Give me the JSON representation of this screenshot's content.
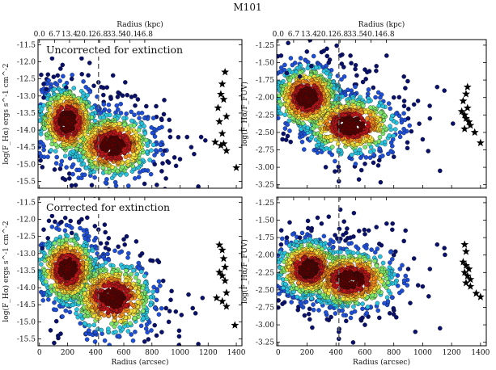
{
  "figure_title": "M101",
  "chart_data": [
    {
      "type": "scatter",
      "panel": "top-left",
      "annotation": "Uncorrected for extinction",
      "ylabel": "log(F_Hα) ergs s^-1 cm^-2",
      "xlabel": "",
      "top_xlabel": "Radius (kpc)",
      "xlim": [
        -10,
        1440
      ],
      "ylim": [
        -15.7,
        -11.35
      ],
      "yticks": [
        -11.5,
        -12.0,
        -12.5,
        -13.0,
        -13.5,
        -14.0,
        -14.5,
        -15.0,
        -15.5
      ],
      "ytick_labels": [
        "-11.5",
        "-12.0",
        "-12.5",
        "-13.0",
        "-13.5",
        "-14.0",
        "-14.5",
        "-15.0",
        "-15.5"
      ],
      "xticks": [
        0,
        200,
        400,
        600,
        800,
        1000,
        1200,
        1400
      ],
      "xtick_labels": [],
      "top_ticks": [
        0,
        107,
        214,
        321,
        428,
        535,
        642,
        749
      ],
      "top_tick_labels": [
        "0.0",
        "6.7",
        "13.4",
        "20.1",
        "26.8",
        "33.5",
        "40.1",
        "46.8"
      ],
      "vline": 420,
      "cluster": {
        "centers": [
          [
            200,
            -13.75,
            100,
            0.5
          ],
          [
            520,
            -14.45,
            140,
            0.45
          ]
        ],
        "count": 1400,
        "spread_x": 360,
        "spread_y": 0.9
      },
      "outliers": [
        [
          30,
          -12.65
        ],
        [
          90,
          -11.9
        ],
        [
          150,
          -12.2
        ],
        [
          230,
          -12.5
        ],
        [
          300,
          -11.9
        ],
        [
          350,
          -11.75
        ],
        [
          420,
          -12.6
        ],
        [
          480,
          -12.75
        ],
        [
          560,
          -12.9
        ],
        [
          610,
          -12.6
        ],
        [
          680,
          -11.65
        ],
        [
          700,
          -13.1
        ],
        [
          760,
          -13.3
        ],
        [
          830,
          -13.3
        ],
        [
          870,
          -13.7
        ],
        [
          890,
          -14.6
        ],
        [
          930,
          -14.2
        ],
        [
          960,
          -14.8
        ],
        [
          1000,
          -14.85
        ],
        [
          1050,
          -14.2
        ],
        [
          1080,
          -14.5
        ],
        [
          1100,
          -14.7
        ],
        [
          1150,
          -14.2
        ],
        [
          1180,
          -14.3
        ],
        [
          820,
          -15.0
        ],
        [
          870,
          -15.2
        ],
        [
          920,
          -14.95
        ],
        [
          1130,
          -15.65
        ],
        [
          30,
          -13.05
        ],
        [
          50,
          -12.8
        ],
        [
          130,
          -12.4
        ],
        [
          190,
          -12.75
        ]
      ],
      "stars": [
        [
          1270,
          -13.35
        ],
        [
          1290,
          -12.95
        ],
        [
          1300,
          -12.65
        ],
        [
          1320,
          -12.3
        ],
        [
          1310,
          -13.1
        ],
        [
          1330,
          -13.6
        ],
        [
          1280,
          -13.75
        ],
        [
          1300,
          -14.1
        ],
        [
          1250,
          -14.35
        ],
        [
          1290,
          -14.45
        ],
        [
          1310,
          -14.4
        ],
        [
          1330,
          -14.6
        ],
        [
          1400,
          -15.1
        ]
      ]
    },
    {
      "type": "scatter",
      "panel": "top-right",
      "annotation": "",
      "ylabel": "log(F_Hα/F_FUV)",
      "xlabel": "",
      "top_xlabel": "Radius (kpc)",
      "xlim": [
        -10,
        1440
      ],
      "ylim": [
        -3.3,
        -1.17
      ],
      "yticks": [
        -1.25,
        -1.5,
        -1.75,
        -2.0,
        -2.25,
        -2.5,
        -2.75,
        -3.0,
        -3.25
      ],
      "ytick_labels": [
        "-1.25",
        "-1.50",
        "-1.75",
        "-2.00",
        "-2.25",
        "-2.50",
        "-2.75",
        "-3.00",
        "-3.25"
      ],
      "xticks": [
        0,
        200,
        400,
        600,
        800,
        1000,
        1200,
        1400
      ],
      "xtick_labels": [],
      "top_ticks": [
        0,
        107,
        214,
        321,
        428,
        535,
        642,
        749
      ],
      "top_tick_labels": [
        "0.0",
        "6.7",
        "13.4",
        "20.1",
        "26.8",
        "33.5",
        "40.1",
        "46.8"
      ],
      "vline": 420,
      "cluster": {
        "centers": [
          [
            200,
            -2.0,
            110,
            0.22
          ],
          [
            500,
            -2.4,
            150,
            0.2
          ]
        ],
        "count": 1400,
        "spread_x": 360,
        "spread_y": 0.45
      },
      "outliers": [
        [
          20,
          -1.4
        ],
        [
          60,
          -1.65
        ],
        [
          150,
          -1.7
        ],
        [
          230,
          -1.55
        ],
        [
          300,
          -1.35
        ],
        [
          350,
          -1.5
        ],
        [
          430,
          -1.4
        ],
        [
          500,
          -1.4
        ],
        [
          600,
          -1.6
        ],
        [
          680,
          -1.55
        ],
        [
          750,
          -1.4
        ],
        [
          800,
          -2.0
        ],
        [
          870,
          -1.7
        ],
        [
          900,
          -2.3
        ],
        [
          940,
          -2.1
        ],
        [
          1000,
          -2.6
        ],
        [
          1050,
          -2.3
        ],
        [
          1100,
          -1.85
        ],
        [
          1150,
          -1.9
        ],
        [
          800,
          -2.85
        ],
        [
          700,
          -2.9
        ],
        [
          600,
          -2.95
        ],
        [
          420,
          -3.05
        ],
        [
          420,
          -3.2
        ],
        [
          1120,
          -3.05
        ],
        [
          30,
          -2.6
        ]
      ],
      "stars": [
        [
          1280,
          -2.05
        ],
        [
          1300,
          -1.95
        ],
        [
          1310,
          -1.85
        ],
        [
          1270,
          -2.2
        ],
        [
          1290,
          -2.25
        ],
        [
          1300,
          -2.3
        ],
        [
          1310,
          -2.15
        ],
        [
          1320,
          -2.35
        ],
        [
          1330,
          -2.4
        ],
        [
          1290,
          -2.45
        ],
        [
          1360,
          -2.5
        ],
        [
          1400,
          -2.65
        ]
      ]
    },
    {
      "type": "scatter",
      "panel": "bottom-left",
      "annotation": "Corrected for extinction",
      "ylabel": "log(F_Hα) ergs s^-1 cm^-2",
      "xlabel": "Radius (arcsec)",
      "top_xlabel": "",
      "xlim": [
        -10,
        1440
      ],
      "ylim": [
        -15.7,
        -11.35
      ],
      "yticks": [
        -11.5,
        -12.0,
        -12.5,
        -13.0,
        -13.5,
        -14.0,
        -14.5,
        -15.0,
        -15.5
      ],
      "ytick_labels": [
        "-11.5",
        "-12.0",
        "-12.5",
        "-13.0",
        "-13.5",
        "-14.0",
        "-14.5",
        "-15.0",
        "-15.5"
      ],
      "xticks": [
        0,
        200,
        400,
        600,
        800,
        1000,
        1200,
        1400
      ],
      "xtick_labels": [
        "0",
        "200",
        "400",
        "600",
        "800",
        "1000",
        "1200",
        "1400"
      ],
      "top_ticks": [
        0,
        107,
        214,
        321,
        428,
        535,
        642,
        749
      ],
      "top_tick_labels": [],
      "vline": 420,
      "cluster": {
        "centers": [
          [
            200,
            -13.45,
            100,
            0.5
          ],
          [
            520,
            -14.3,
            140,
            0.5
          ]
        ],
        "count": 1400,
        "spread_x": 360,
        "spread_y": 0.95
      },
      "outliers": [
        [
          30,
          -12.3
        ],
        [
          90,
          -11.9
        ],
        [
          150,
          -12.1
        ],
        [
          230,
          -12.4
        ],
        [
          300,
          -12.0
        ],
        [
          340,
          -11.95
        ],
        [
          420,
          -12.3
        ],
        [
          480,
          -12.7
        ],
        [
          560,
          -12.8
        ],
        [
          620,
          -12.5
        ],
        [
          690,
          -11.75
        ],
        [
          730,
          -13.0
        ],
        [
          790,
          -13.2
        ],
        [
          840,
          -13.2
        ],
        [
          880,
          -13.8
        ],
        [
          900,
          -14.6
        ],
        [
          940,
          -14.1
        ],
        [
          970,
          -14.7
        ],
        [
          1010,
          -14.8
        ],
        [
          1060,
          -14.2
        ],
        [
          1090,
          -14.6
        ],
        [
          1110,
          -14.75
        ],
        [
          1160,
          -14.3
        ],
        [
          820,
          -15.1
        ],
        [
          870,
          -15.3
        ],
        [
          920,
          -15.0
        ],
        [
          1130,
          -15.65
        ],
        [
          20,
          -12.85
        ],
        [
          60,
          -12.55
        ]
      ],
      "stars": [
        [
          1280,
          -12.75
        ],
        [
          1300,
          -12.9
        ],
        [
          1310,
          -13.15
        ],
        [
          1320,
          -13.4
        ],
        [
          1280,
          -13.55
        ],
        [
          1300,
          -13.65
        ],
        [
          1320,
          -13.8
        ],
        [
          1330,
          -14.15
        ],
        [
          1260,
          -14.3
        ],
        [
          1300,
          -14.4
        ],
        [
          1330,
          -14.55
        ],
        [
          1390,
          -15.1
        ]
      ]
    },
    {
      "type": "scatter",
      "panel": "bottom-right",
      "annotation": "",
      "ylabel": "log(F_Hα/F_FUV)",
      "xlabel": "Radius (arcsec)",
      "top_xlabel": "",
      "xlim": [
        -10,
        1440
      ],
      "ylim": [
        -3.3,
        -1.17
      ],
      "yticks": [
        -1.25,
        -1.5,
        -1.75,
        -2.0,
        -2.25,
        -2.5,
        -2.75,
        -3.0,
        -3.25
      ],
      "ytick_labels": [
        "-1.25",
        "-1.50",
        "-1.75",
        "-2.00",
        "-2.25",
        "-2.50",
        "-2.75",
        "-3.00",
        "-3.25"
      ],
      "xticks": [
        0,
        200,
        400,
        600,
        800,
        1000,
        1200,
        1400
      ],
      "xtick_labels": [
        "0",
        "200",
        "400",
        "600",
        "800",
        "1000",
        "1200",
        "1400"
      ],
      "top_ticks": [
        0,
        107,
        214,
        321,
        428,
        535,
        642,
        749
      ],
      "top_tick_labels": [],
      "vline": 420,
      "cluster": {
        "centers": [
          [
            210,
            -2.2,
            110,
            0.2
          ],
          [
            500,
            -2.35,
            150,
            0.2
          ]
        ],
        "count": 1400,
        "spread_x": 360,
        "spread_y": 0.42
      },
      "outliers": [
        [
          20,
          -1.85
        ],
        [
          60,
          -1.75
        ],
        [
          150,
          -1.75
        ],
        [
          230,
          -1.65
        ],
        [
          300,
          -1.55
        ],
        [
          350,
          -1.45
        ],
        [
          430,
          -1.35
        ],
        [
          500,
          -1.75
        ],
        [
          600,
          -1.7
        ],
        [
          680,
          -1.6
        ],
        [
          750,
          -1.55
        ],
        [
          800,
          -2.0
        ],
        [
          870,
          -1.8
        ],
        [
          900,
          -2.2
        ],
        [
          940,
          -2.05
        ],
        [
          1000,
          -2.45
        ],
        [
          1050,
          -2.2
        ],
        [
          1100,
          -1.85
        ],
        [
          1150,
          -1.9
        ],
        [
          800,
          -2.85
        ],
        [
          700,
          -2.9
        ],
        [
          600,
          -3.0
        ],
        [
          420,
          -3.1
        ],
        [
          420,
          -3.2
        ],
        [
          1120,
          -3.05
        ],
        [
          30,
          -2.7
        ]
      ],
      "stars": [
        [
          1290,
          -1.85
        ],
        [
          1300,
          -1.95
        ],
        [
          1280,
          -2.1
        ],
        [
          1300,
          -2.15
        ],
        [
          1320,
          -2.2
        ],
        [
          1290,
          -2.25
        ],
        [
          1310,
          -2.3
        ],
        [
          1330,
          -2.35
        ],
        [
          1300,
          -2.4
        ],
        [
          1330,
          -2.45
        ],
        [
          1370,
          -2.55
        ],
        [
          1400,
          -2.6
        ]
      ]
    }
  ],
  "colormap": [
    "#08106b",
    "#1d4fd8",
    "#29c4e0",
    "#7ee86a",
    "#f6e23b",
    "#f28a1e",
    "#c0161a",
    "#5c0000"
  ]
}
